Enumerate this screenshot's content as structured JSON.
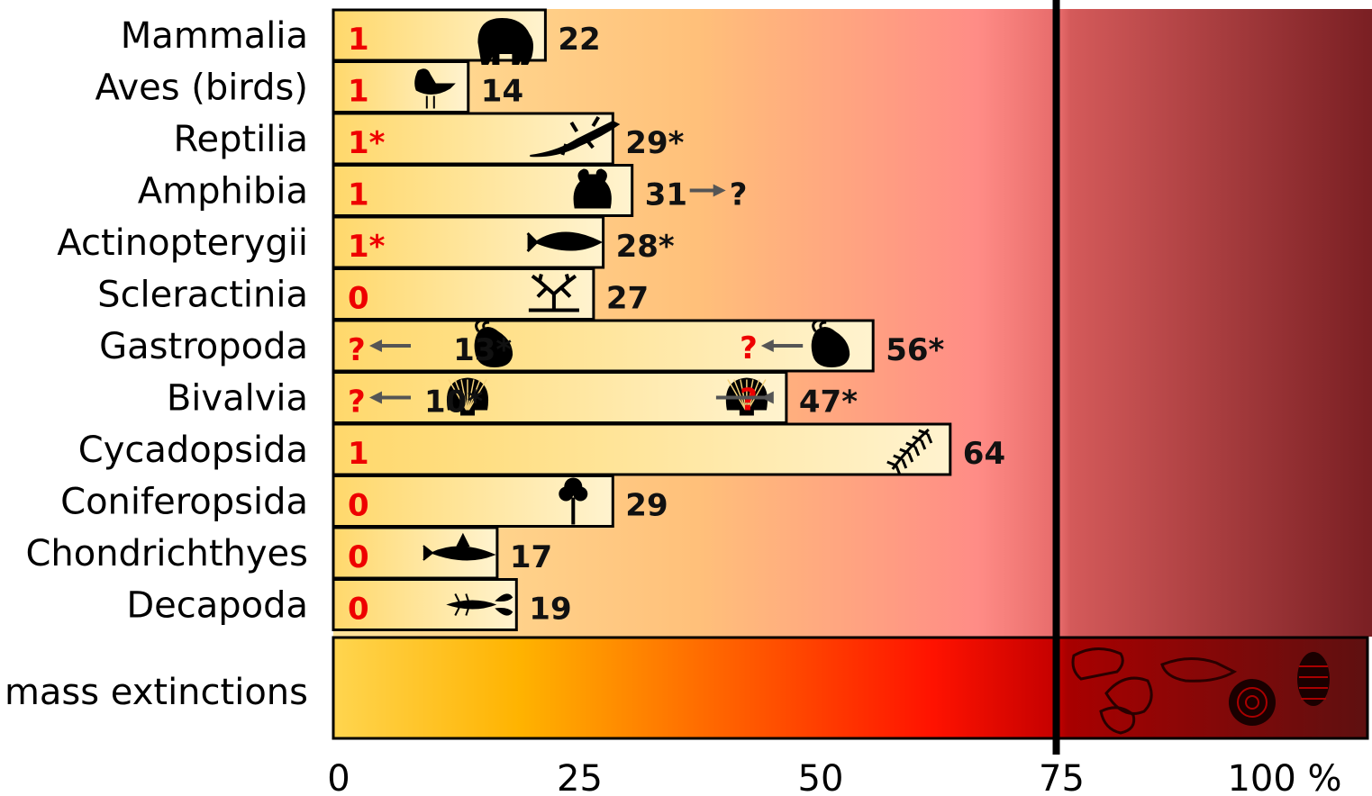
{
  "chart_data": {
    "type": "bar",
    "orientation": "horizontal",
    "categories": [
      "Mammalia",
      "Aves (birds)",
      "Reptilia",
      "Amphibia",
      "Actinopterygii",
      "Scleractinia",
      "Gastropoda",
      "Bivalvia",
      "Cycadopsida",
      "Coniferopsida",
      "Chondrichthyes",
      "Decapoda"
    ],
    "values": [
      22,
      14,
      29,
      31,
      28,
      27,
      56,
      47,
      64,
      29,
      17,
      19
    ],
    "value_labels": [
      "22",
      "14",
      "29*",
      "31",
      "28*",
      "27",
      "56*",
      "47*",
      "64",
      "29",
      "17",
      "19"
    ],
    "value_suffix": [
      "",
      "",
      "",
      "→?",
      "",
      "",
      "",
      "",
      "",
      "",
      "",
      ""
    ],
    "left_labels": [
      "1",
      "1",
      "1*",
      "1",
      "1*",
      "0",
      "?",
      "?",
      "1",
      "0",
      "0",
      "0"
    ],
    "secondary": {
      "Gastropoda": {
        "value": 13,
        "label": "13*",
        "arrow_label": "?"
      },
      "Bivalvia": {
        "value": 10,
        "label": "10*",
        "arrow_label": "?"
      }
    },
    "icons": [
      "elephant-icon",
      "bird-icon",
      "lizard-icon",
      "frog-icon",
      "fish-icon",
      "coral-icon",
      "snail-icon",
      "scallop-icon",
      "fern-icon",
      "tree-icon",
      "shark-icon",
      "lobster-icon"
    ],
    "reference_row": {
      "label": "mass extinctions",
      "range": [
        0,
        107
      ],
      "icons": [
        "skull-fossil-icon",
        "ammonite-icon",
        "trilobite-icon"
      ]
    },
    "threshold_line": 75,
    "x_ticks": [
      "0",
      "25",
      "50",
      "75",
      "100 %"
    ],
    "x_tick_values": [
      0,
      25,
      50,
      75,
      100
    ],
    "xlim": [
      0,
      107
    ],
    "colors": {
      "bar_start": "#ffd966",
      "bar_end": "#fff1c4",
      "label_red": "#ee0000",
      "bg_start": "#ffd54f",
      "bg_mid": "#ff9a8a",
      "bg_end": "#7a1f23",
      "mass_start": "#ffd54f",
      "mass_mid": "#ff1a00",
      "mass_end": "#6a1414"
    }
  }
}
